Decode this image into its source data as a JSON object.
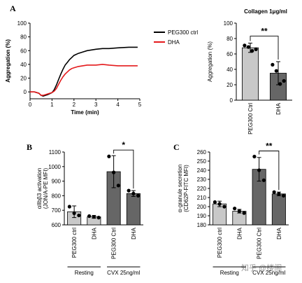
{
  "panels": {
    "a": "A",
    "b": "B",
    "c": "C"
  },
  "watermark": "知乎 @楼阁",
  "chart_data": [
    {
      "id": "A-left",
      "type": "line",
      "xlabel": "Time (min)",
      "ylabel": "Aggregation (%)",
      "xlim": [
        0,
        5
      ],
      "ylim": [
        -10,
        100
      ],
      "xticks": [
        0,
        1,
        2,
        3,
        4,
        5
      ],
      "yticks": [
        0,
        20,
        40,
        60,
        80,
        100
      ],
      "legend_position": "top-right",
      "series": [
        {
          "name": "PEG300 ctrl",
          "color": "#000000",
          "x": [
            0,
            0.2,
            0.4,
            0.5,
            0.6,
            0.8,
            1.0,
            1.1,
            1.2,
            1.3,
            1.4,
            1.5,
            1.6,
            1.7,
            1.8,
            1.9,
            2.0,
            2.2,
            2.4,
            2.6,
            2.8,
            3.0,
            3.3,
            3.6,
            4.0,
            4.5,
            4.9
          ],
          "y": [
            0,
            0,
            -2,
            -5,
            -6,
            -4,
            -1,
            3,
            10,
            18,
            26,
            33,
            39,
            43,
            47,
            50,
            53,
            56,
            58,
            60,
            61,
            62,
            63,
            63,
            64,
            65,
            65
          ]
        },
        {
          "name": "DHA",
          "color": "#e41a1c",
          "x": [
            0,
            0.2,
            0.4,
            0.5,
            0.6,
            0.8,
            1.0,
            1.1,
            1.2,
            1.3,
            1.4,
            1.5,
            1.6,
            1.7,
            1.8,
            1.9,
            2.0,
            2.2,
            2.4,
            2.6,
            2.8,
            3.0,
            3.3,
            3.6,
            4.0,
            4.5,
            4.9
          ],
          "y": [
            0,
            0,
            -2,
            -5,
            -5,
            -3,
            -1,
            1,
            5,
            11,
            17,
            22,
            26,
            29,
            32,
            34,
            35,
            37,
            38,
            39,
            39,
            39,
            40,
            39,
            38,
            38,
            38
          ]
        }
      ]
    },
    {
      "id": "A-right",
      "type": "bar",
      "title": "Collagen 1μg/ml",
      "ylabel": "Aggregation (%)",
      "ylim": [
        0,
        100
      ],
      "yticks": [
        0,
        20,
        40,
        60,
        80,
        100
      ],
      "categories": [
        "PEG300 Ctrl",
        "DHA"
      ],
      "values": [
        68,
        35
      ],
      "errors": [
        6,
        15
      ],
      "colors": [
        "#c8c8c8",
        "#666666"
      ],
      "points": [
        [
          71,
          69,
          64,
          66
        ],
        [
          46,
          38,
          21,
          25
        ]
      ],
      "significance": [
        {
          "between": [
            0,
            1
          ],
          "label": "**"
        }
      ]
    },
    {
      "id": "B",
      "type": "bar",
      "ylabel": [
        "αIIbβ3 activation",
        "(JON/A-PE MFI)"
      ],
      "ylim": [
        600,
        1100
      ],
      "yticks": [
        600,
        700,
        800,
        900,
        1000,
        1100
      ],
      "categories": [
        "PEG300 ctrl",
        "DHA",
        "PEG300 Ctrl",
        "DHA"
      ],
      "values": [
        690,
        655,
        965,
        815
      ],
      "errors": [
        40,
        10,
        110,
        20
      ],
      "colors": [
        "#c8c8c8",
        "#c8c8c8",
        "#666666",
        "#666666"
      ],
      "points": [
        [
          725,
          680,
          665
        ],
        [
          660,
          655,
          650
        ],
        [
          1070,
          960,
          870
        ],
        [
          835,
          815,
          800
        ]
      ],
      "groups": [
        {
          "label": "Resting",
          "bars": [
            0,
            1
          ]
        },
        {
          "label": "CVX 25ng/ml",
          "bars": [
            2,
            3
          ]
        }
      ],
      "significance": [
        {
          "between": [
            2,
            3
          ],
          "label": "*"
        }
      ]
    },
    {
      "id": "C",
      "type": "bar",
      "ylabel": [
        "α-granule secretion",
        "(CD62P-FITC MFI)"
      ],
      "ylim": [
        180,
        260
      ],
      "yticks": [
        180,
        190,
        200,
        210,
        220,
        230,
        240,
        250,
        260
      ],
      "categories": [
        "PEG300 ctrl",
        "DHA",
        "PEG300 Ctrl",
        "DHA"
      ],
      "values": [
        203,
        195,
        241,
        214
      ],
      "errors": [
        3,
        2,
        13,
        2
      ],
      "colors": [
        "#c8c8c8",
        "#c8c8c8",
        "#666666",
        "#666666"
      ],
      "points": [
        [
          205,
          203,
          200
        ],
        [
          198,
          195,
          193
        ],
        [
          255,
          240,
          229
        ],
        [
          216,
          214,
          212
        ]
      ],
      "groups": [
        {
          "label": "Resting",
          "bars": [
            0,
            1
          ]
        },
        {
          "label": "CVX 25ng/ml",
          "bars": [
            2,
            3
          ]
        }
      ],
      "significance": [
        {
          "between": [
            2,
            3
          ],
          "label": "**"
        }
      ]
    }
  ]
}
